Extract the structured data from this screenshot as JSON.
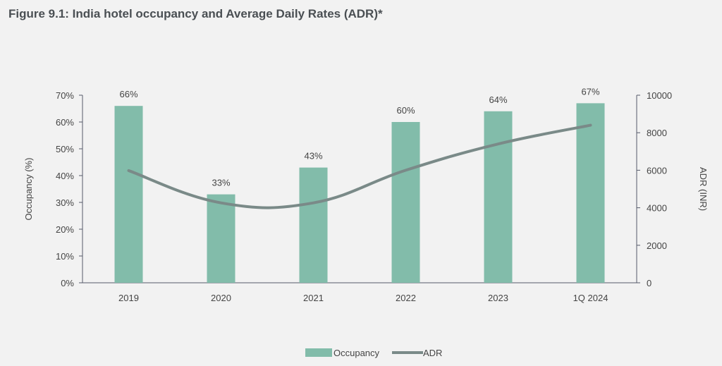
{
  "title": "Figure 9.1: India hotel occupancy and Average Daily Rates (ADR)*",
  "chart_data": {
    "type": "bar",
    "categories": [
      "2019",
      "2020",
      "2021",
      "2022",
      "2023",
      "1Q 2024"
    ],
    "series": [
      {
        "name": "Occupancy",
        "type": "bar",
        "axis": "left",
        "values": [
          66,
          33,
          43,
          60,
          64,
          67
        ],
        "labels": [
          "66%",
          "33%",
          "43%",
          "60%",
          "64%",
          "67%"
        ],
        "color": "#82bcaa"
      },
      {
        "name": "ADR",
        "type": "line",
        "axis": "right",
        "values": [
          5980,
          4260,
          4260,
          6000,
          7400,
          8400
        ],
        "color": "#7a8a88"
      }
    ],
    "ylabel": "Occupancy (%)",
    "y2label": "ADR (INR)",
    "ylim": [
      0,
      70
    ],
    "y2lim": [
      0,
      10000
    ],
    "yticks": [
      "0%",
      "10%",
      "20%",
      "30%",
      "40%",
      "50%",
      "60%",
      "70%"
    ],
    "y2ticks": [
      "0",
      "2000",
      "4000",
      "6000",
      "8000",
      "10000"
    ],
    "legend_position": "bottom-center",
    "grid": false
  }
}
